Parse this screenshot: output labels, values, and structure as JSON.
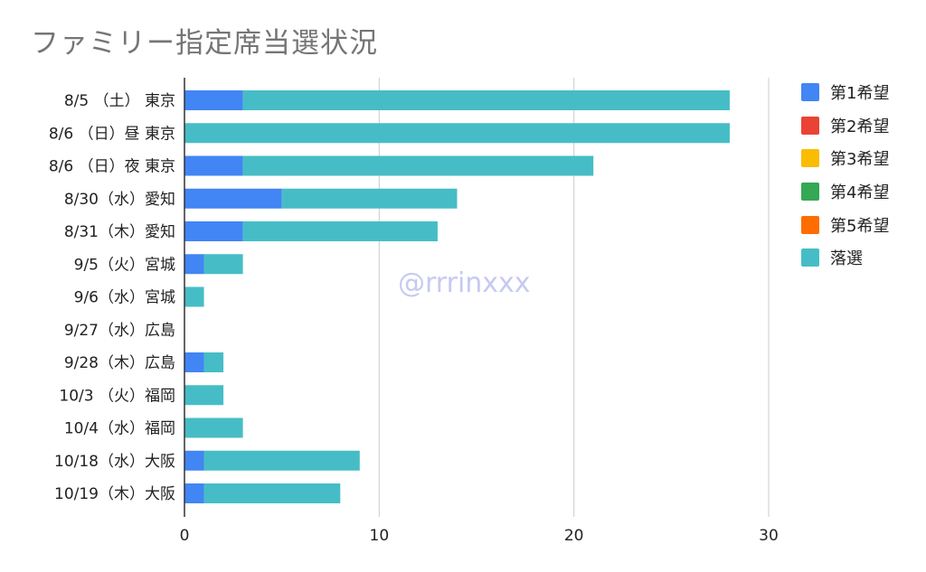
{
  "chart_data": {
    "type": "bar",
    "orientation": "horizontal",
    "stacked": true,
    "title": "ファミリー指定席当選状況",
    "categories": [
      "8/5 （土） 東京",
      "8/6 （日）昼 東京",
      "8/6 （日）夜 東京",
      "8/30（水）愛知",
      "8/31（木）愛知",
      "9/5（火）宮城",
      "9/6（水）宮城",
      "9/27（水）広島",
      "9/28（木）広島",
      "10/3 （火）福岡",
      "10/4（水）福岡",
      "10/18（水）大阪",
      "10/19（木）大阪"
    ],
    "series": [
      {
        "name": "第1希望",
        "color": "#4285f4",
        "values": [
          3,
          0,
          3,
          5,
          3,
          1,
          0,
          0,
          1,
          0,
          0,
          1,
          1
        ]
      },
      {
        "name": "第2希望",
        "color": "#ea4335",
        "values": [
          0,
          0,
          0,
          0,
          0,
          0,
          0,
          0,
          0,
          0,
          0,
          0,
          0
        ]
      },
      {
        "name": "第3希望",
        "color": "#fbbc04",
        "values": [
          0,
          0,
          0,
          0,
          0,
          0,
          0,
          0,
          0,
          0,
          0,
          0,
          0
        ]
      },
      {
        "name": "第4希望",
        "color": "#34a853",
        "values": [
          0,
          0,
          0,
          0,
          0,
          0,
          0,
          0,
          0,
          0,
          0,
          0,
          0
        ]
      },
      {
        "name": "第5希望",
        "color": "#ff6d01",
        "values": [
          0,
          0,
          0,
          0,
          0,
          0,
          0,
          0,
          0,
          0,
          0,
          0,
          0
        ]
      },
      {
        "name": "落選",
        "color": "#46bdc6",
        "values": [
          25,
          28,
          18,
          9,
          10,
          2,
          1,
          0,
          1,
          2,
          3,
          8,
          7
        ]
      }
    ],
    "xlim": [
      0,
      30
    ],
    "xticks": [
      0,
      10,
      20,
      30
    ],
    "grid": true,
    "legend_position": "right"
  },
  "watermark": "@rrrinxxx"
}
